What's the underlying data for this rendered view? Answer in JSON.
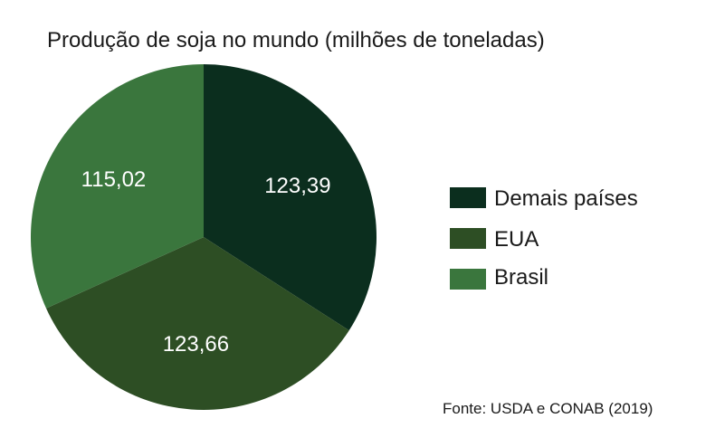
{
  "chart_data": {
    "type": "pie",
    "title": "Produção de soja no mundo (milhões de toneladas)",
    "categories": [
      "Demais países",
      "EUA",
      "Brasil"
    ],
    "values": [
      123.39,
      123.66,
      115.02
    ],
    "value_labels": [
      "123,39",
      "123,66",
      "115,02"
    ],
    "colors": [
      "#0b2e1e",
      "#2d4e24",
      "#3a763d"
    ],
    "start": "12 o'clock",
    "direction": "clockwise",
    "legend": {
      "placement": "right",
      "entries": [
        "Demais países",
        "EUA",
        "Brasil"
      ]
    },
    "source": "Fonte: USDA e CONAB (2019)"
  }
}
